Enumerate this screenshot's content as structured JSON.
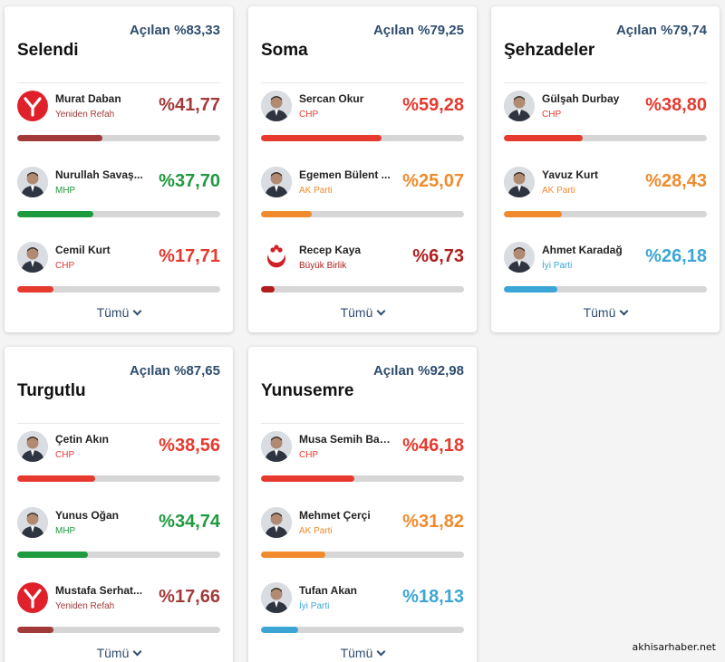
{
  "colors": {
    "chp": "#e63a2e",
    "yeniden_refah": "#a33a3a",
    "mhp": "#1f9a3e",
    "ak_parti": "#f08a2c",
    "iyi_parti": "#3ba6d6",
    "buyuk_birlik": "#b01d1d",
    "turnout_text": "#2f4d6e"
  },
  "cards": [
    {
      "turnout": "Açılan %83,33",
      "district": "Selendi",
      "candidates": [
        {
          "name": "Murat Daban",
          "party": "Yeniden Refah",
          "percent": "%41,77",
          "share": 41.77,
          "color": "#a33a3a",
          "avatar": "yeniden-refah-logo"
        },
        {
          "name": "Nurullah Savaş...",
          "party": "MHP",
          "percent": "%37,70",
          "share": 37.7,
          "color": "#1f9a3e",
          "avatar": "candidate-photo"
        },
        {
          "name": "Cemil Kurt",
          "party": "CHP",
          "percent": "%17,71",
          "share": 17.71,
          "color": "#e63a2e",
          "avatar": "candidate-photo"
        }
      ],
      "more_label": "Tümü"
    },
    {
      "turnout": "Açılan %79,25",
      "district": "Soma",
      "candidates": [
        {
          "name": "Sercan Okur",
          "party": "CHP",
          "percent": "%59,28",
          "share": 59.28,
          "color": "#e63a2e",
          "avatar": "candidate-photo"
        },
        {
          "name": "Egemen Bülent ...",
          "party": "AK Parti",
          "percent": "%25,07",
          "share": 25.07,
          "color": "#f08a2c",
          "avatar": "candidate-photo"
        },
        {
          "name": "Recep Kaya",
          "party": "Büyük Birlik",
          "percent": "%6,73",
          "share": 6.73,
          "color": "#b01d1d",
          "avatar": "buyuk-birlik-logo"
        }
      ],
      "more_label": "Tümü"
    },
    {
      "turnout": "Açılan %79,74",
      "district": "Şehzadeler",
      "candidates": [
        {
          "name": "Gülşah Durbay",
          "party": "CHP",
          "percent": "%38,80",
          "share": 38.8,
          "color": "#e63a2e",
          "avatar": "candidate-photo"
        },
        {
          "name": "Yavuz Kurt",
          "party": "AK Parti",
          "percent": "%28,43",
          "share": 28.43,
          "color": "#f08a2c",
          "avatar": "candidate-photo"
        },
        {
          "name": "Ahmet Karadağ",
          "party": "İyi Parti",
          "percent": "%26,18",
          "share": 26.18,
          "color": "#3ba6d6",
          "avatar": "candidate-photo"
        }
      ],
      "more_label": "Tümü"
    },
    {
      "turnout": "Açılan %87,65",
      "district": "Turgutlu",
      "candidates": [
        {
          "name": "Çetin Akın",
          "party": "CHP",
          "percent": "%38,56",
          "share": 38.56,
          "color": "#e63a2e",
          "avatar": "candidate-photo"
        },
        {
          "name": "Yunus Oğan",
          "party": "MHP",
          "percent": "%34,74",
          "share": 34.74,
          "color": "#1f9a3e",
          "avatar": "candidate-photo"
        },
        {
          "name": "Mustafa Serhat...",
          "party": "Yeniden Refah",
          "percent": "%17,66",
          "share": 17.66,
          "color": "#a33a3a",
          "avatar": "yeniden-refah-logo"
        }
      ],
      "more_label": "Tümü"
    },
    {
      "turnout": "Açılan %92,98",
      "district": "Yunusemre",
      "candidates": [
        {
          "name": "Musa Semih Bal...",
          "party": "CHP",
          "percent": "%46,18",
          "share": 46.18,
          "color": "#e63a2e",
          "avatar": "candidate-photo"
        },
        {
          "name": "Mehmet Çerçi",
          "party": "AK Parti",
          "percent": "%31,82",
          "share": 31.82,
          "color": "#f08a2c",
          "avatar": "candidate-photo"
        },
        {
          "name": "Tufan Akan",
          "party": "İyi Parti",
          "percent": "%18,13",
          "share": 18.13,
          "color": "#3ba6d6",
          "avatar": "candidate-photo"
        }
      ],
      "more_label": "Tümü"
    }
  ],
  "watermark": "akhisarhaber.net"
}
